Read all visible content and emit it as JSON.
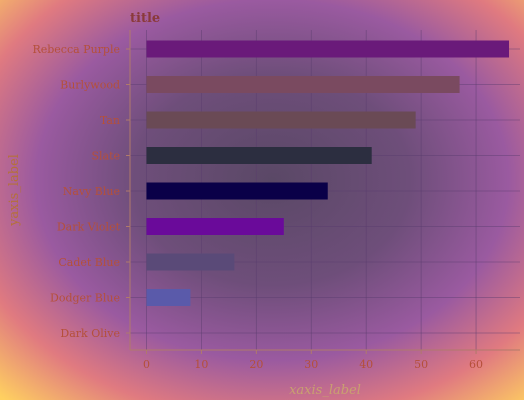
{
  "chart_data": {
    "type": "bar",
    "orientation": "horizontal",
    "title": "title",
    "xlabel": "xaxis_label",
    "ylabel": "yaxis_label",
    "categories": [
      "Rebecca Purple",
      "Burlywood",
      "Tan",
      "Slate",
      "Navy Blue",
      "Dark Violet",
      "Cadet Blue",
      "Dodger Blue",
      "Dark Olive"
    ],
    "values": [
      66,
      57,
      49,
      41,
      33,
      25,
      16,
      8,
      0
    ],
    "bar_colors": [
      "#6a1a7a",
      "#7a4a60",
      "#6a4a55",
      "#2c2e40",
      "#0a0048",
      "#6a0a9a",
      "#5a4a78",
      "#5a5aaa",
      "#556b2f"
    ],
    "xlim": [
      -3,
      68
    ],
    "xticks": [
      0,
      10,
      20,
      30,
      40,
      50,
      60
    ],
    "grid": true,
    "legend": "none"
  }
}
